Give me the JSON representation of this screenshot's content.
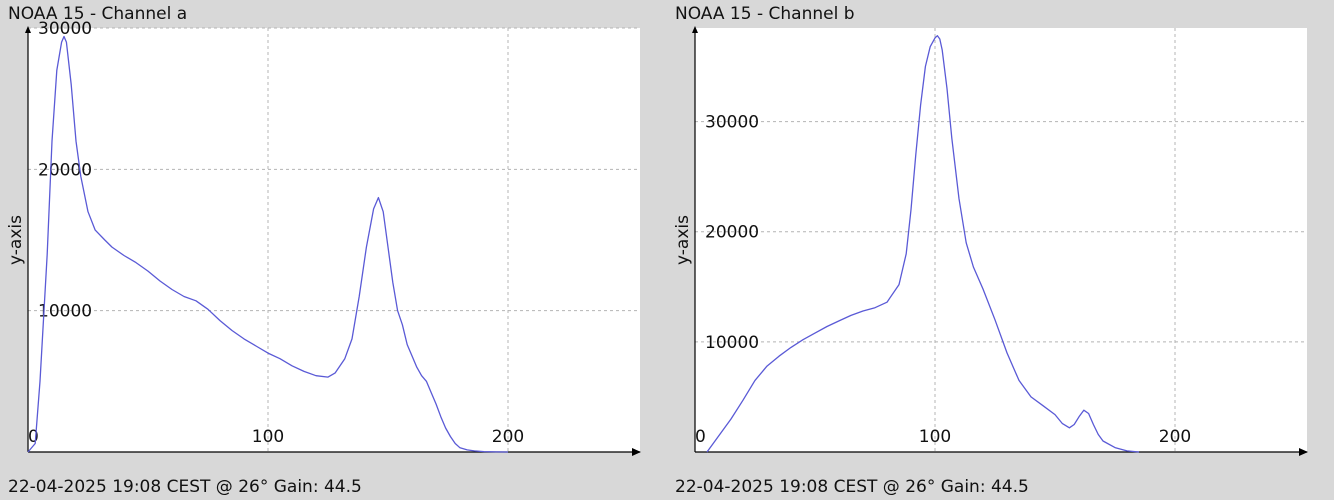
{
  "colors": {
    "background": "#d8d8d8",
    "plot_bg": "#ffffff",
    "line": "#5a5ad6",
    "grid": "#b4b4b4",
    "axis": "#000000"
  },
  "chart_data": [
    {
      "type": "line",
      "title": "NOAA 15 - Channel a",
      "footer": "22-04-2025 19:08 CEST @ 26° Gain: 44.5",
      "xlabel": "",
      "ylabel": "y-axis",
      "xlim": [
        0,
        255
      ],
      "ylim": [
        0,
        30000
      ],
      "x_ticks": [
        0,
        100,
        200
      ],
      "y_ticks": [
        10000,
        20000,
        30000
      ],
      "x_tick_labels": [
        "0",
        "100",
        "200"
      ],
      "y_tick_labels": [
        "10000",
        "20000",
        "30000"
      ],
      "grid": true,
      "series": [
        {
          "x": [
            0,
            3,
            5,
            8,
            10,
            12,
            14,
            15,
            16,
            18,
            20,
            22,
            25,
            28,
            32,
            35,
            40,
            45,
            50,
            55,
            60,
            65,
            70,
            75,
            80,
            85,
            90,
            95,
            100,
            105,
            110,
            115,
            120,
            125,
            128,
            132,
            135,
            138,
            141,
            144,
            146,
            148,
            150,
            152,
            154,
            156,
            158,
            160,
            162,
            164,
            166,
            168,
            170,
            172,
            174,
            176,
            178,
            180,
            183,
            186,
            190,
            195,
            200
          ],
          "y": [
            0,
            600,
            5000,
            14000,
            22000,
            27000,
            29000,
            29400,
            29000,
            26000,
            22000,
            19500,
            17000,
            15700,
            15000,
            14500,
            13900,
            13400,
            12800,
            12100,
            11500,
            11000,
            10700,
            10100,
            9300,
            8600,
            8000,
            7500,
            7000,
            6600,
            6100,
            5700,
            5400,
            5300,
            5600,
            6600,
            8000,
            11000,
            14500,
            17200,
            18000,
            17000,
            14500,
            12000,
            10000,
            9000,
            7600,
            6800,
            6000,
            5400,
            5000,
            4200,
            3400,
            2500,
            1700,
            1100,
            600,
            300,
            150,
            80,
            30,
            10,
            0
          ]
        }
      ]
    },
    {
      "type": "line",
      "title": "NOAA 15 - Channel b",
      "footer": "22-04-2025 19:08 CEST @ 26° Gain: 44.5",
      "xlabel": "",
      "ylabel": "y-axis",
      "xlim": [
        0,
        255
      ],
      "ylim": [
        0,
        38500
      ],
      "x_ticks": [
        0,
        100,
        200
      ],
      "y_ticks": [
        10000,
        20000,
        30000
      ],
      "x_tick_labels": [
        "0",
        "100",
        "200"
      ],
      "y_tick_labels": [
        "10000",
        "20000",
        "30000"
      ],
      "grid": true,
      "series": [
        {
          "x": [
            5,
            10,
            15,
            20,
            25,
            30,
            35,
            40,
            45,
            50,
            55,
            60,
            65,
            70,
            75,
            80,
            85,
            88,
            90,
            92,
            94,
            96,
            98,
            100,
            101,
            102,
            103,
            105,
            107,
            110,
            113,
            116,
            120,
            125,
            130,
            135,
            140,
            145,
            150,
            153,
            156,
            158,
            160,
            162,
            164,
            166,
            168,
            170,
            175,
            180,
            185
          ],
          "y": [
            0,
            1500,
            3000,
            4700,
            6500,
            7800,
            8700,
            9500,
            10200,
            10800,
            11400,
            11900,
            12400,
            12800,
            13100,
            13600,
            15200,
            18000,
            22000,
            27000,
            31500,
            35000,
            36800,
            37600,
            37800,
            37500,
            36500,
            33000,
            28500,
            23000,
            19000,
            16800,
            14800,
            12000,
            9000,
            6500,
            5000,
            4200,
            3400,
            2600,
            2200,
            2500,
            3200,
            3800,
            3500,
            2500,
            1600,
            1000,
            400,
            100,
            0
          ]
        }
      ]
    }
  ]
}
